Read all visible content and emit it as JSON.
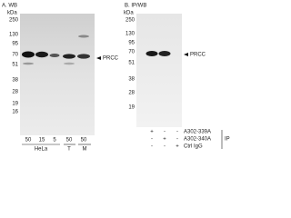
{
  "panels": [
    {
      "label": "A. WB",
      "kda": "kDa",
      "markers": [
        "250",
        "130",
        "95",
        "70",
        "51",
        "38",
        "28",
        "19",
        "16"
      ],
      "target": "PRCC",
      "lanes": [
        "50",
        "15",
        "5",
        "50",
        "50"
      ],
      "groups": [
        "HeLa",
        "T",
        "M"
      ]
    },
    {
      "label": "B. IP/WB",
      "kda": "kDa",
      "markers": [
        "250",
        "130",
        "95",
        "70",
        "51",
        "38",
        "28",
        "19"
      ],
      "target": "PRCC",
      "ip_rows": [
        {
          "name": "A302-339A",
          "signs": [
            "+",
            "-",
            "-"
          ]
        },
        {
          "name": "A302-340A",
          "signs": [
            "-",
            "+",
            "-"
          ]
        },
        {
          "name": "Ctrl IgG",
          "signs": [
            "-",
            "-",
            "+"
          ]
        }
      ],
      "ip_label": "IP"
    }
  ]
}
